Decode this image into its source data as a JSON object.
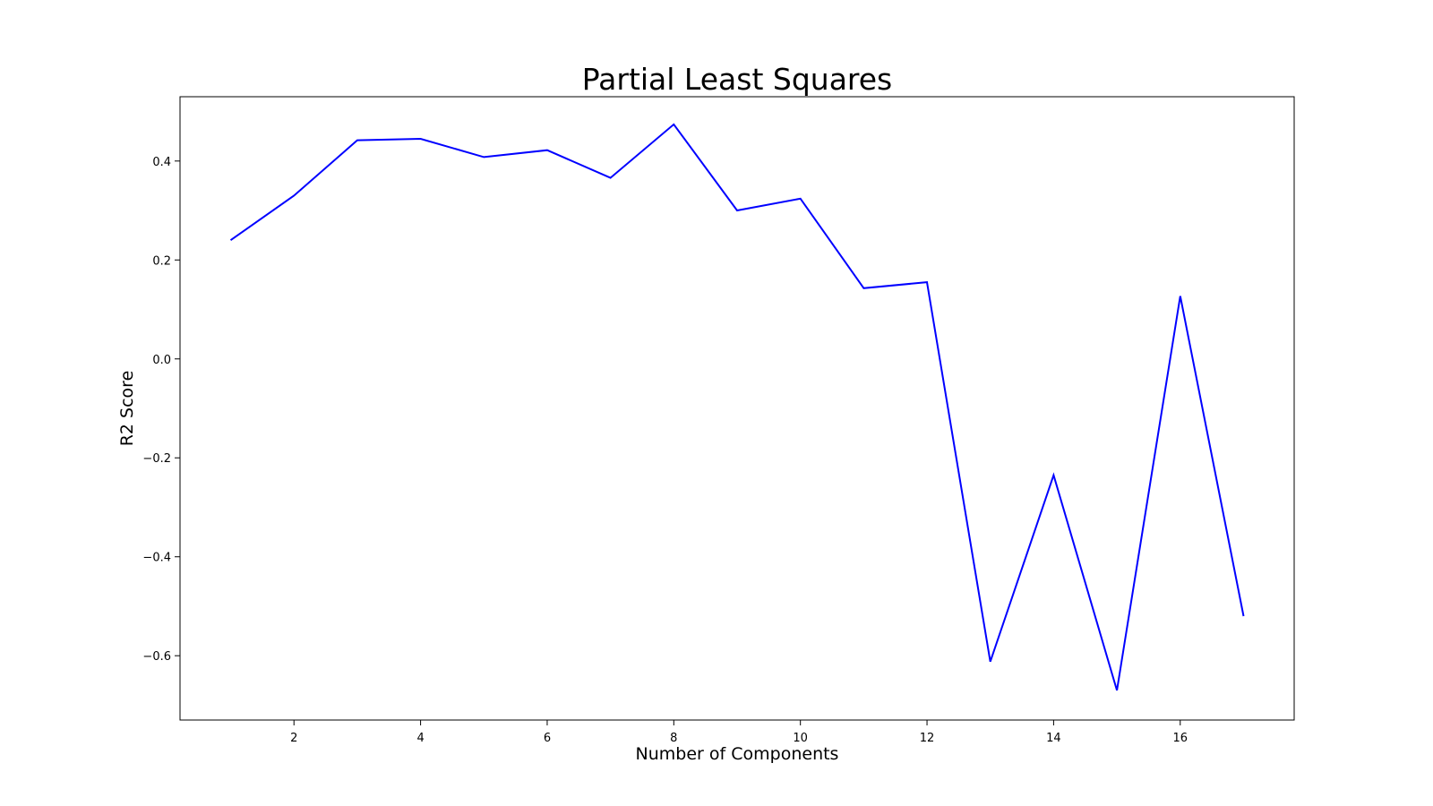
{
  "chart_data": {
    "type": "line",
    "title": "Partial Least Squares",
    "xlabel": "Number of Components",
    "ylabel": "R2 Score",
    "xlim": [
      0.2,
      17.8
    ],
    "ylim": [
      -0.73,
      0.53
    ],
    "x_ticks": [
      2,
      4,
      6,
      8,
      10,
      12,
      14,
      16
    ],
    "x_tick_labels": [
      "2",
      "4",
      "6",
      "8",
      "10",
      "12",
      "14",
      "16"
    ],
    "y_ticks": [
      0.4,
      0.2,
      0.0,
      -0.2,
      -0.4,
      -0.6
    ],
    "y_tick_labels": [
      "0.4",
      "0.2",
      "0.0",
      "−0.2",
      "−0.4",
      "−0.6"
    ],
    "grid": false,
    "legend": "none",
    "series": [
      {
        "color": "#0000ff",
        "x": [
          1,
          2,
          3,
          4,
          5,
          6,
          7,
          8,
          9,
          10,
          11,
          12,
          13,
          14,
          15,
          16,
          17
        ],
        "values": [
          0.24,
          0.33,
          0.442,
          0.445,
          0.408,
          0.422,
          0.366,
          0.474,
          0.3,
          0.324,
          0.143,
          0.155,
          -0.612,
          -0.235,
          -0.67,
          0.127,
          -0.52
        ]
      }
    ]
  }
}
